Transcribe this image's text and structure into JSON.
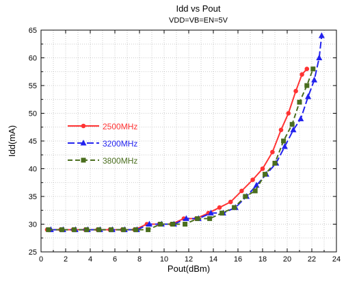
{
  "chart_data": {
    "type": "line",
    "title": "Idd vs Pout",
    "subtitle": "VDD=VB=EN=5V",
    "xlabel": "Pout(dBm)",
    "ylabel": "Idd(mA)",
    "xlim": [
      0,
      24
    ],
    "ylim": [
      25,
      65
    ],
    "xticks": [
      0,
      2,
      4,
      6,
      8,
      10,
      12,
      14,
      16,
      18,
      20,
      22,
      24
    ],
    "yticks": [
      25,
      30,
      35,
      40,
      45,
      50,
      55,
      60,
      65
    ],
    "grid": true,
    "grid_style": "dotted",
    "legend_position": "middle-left",
    "series": [
      {
        "name": "2500MHz",
        "color": "#ff3333",
        "marker": "circle",
        "dash": "solid",
        "x": [
          0.5,
          1.6,
          2.6,
          3.6,
          4.6,
          5.6,
          6.6,
          7.6,
          8.6,
          9.6,
          10.6,
          11.6,
          12.6,
          13.6,
          14.5,
          15.4,
          16.3,
          17.2,
          18.0,
          18.8,
          19.5,
          20.1,
          20.7,
          21.2,
          21.6
        ],
        "y": [
          29,
          29,
          29,
          29,
          29,
          29,
          29,
          29,
          30,
          30,
          30,
          31,
          31,
          32,
          33,
          34,
          36,
          38,
          40,
          43,
          47,
          50,
          54,
          57,
          58
        ]
      },
      {
        "name": "3200MHz",
        "color": "#2222ee",
        "marker": "triangle",
        "dash": "long-dash",
        "x": [
          0.8,
          1.8,
          2.8,
          3.8,
          4.8,
          5.8,
          6.8,
          7.8,
          8.8,
          9.8,
          10.8,
          11.8,
          12.8,
          13.8,
          14.8,
          15.8,
          16.7,
          17.5,
          18.3,
          19.1,
          19.8,
          20.5,
          21.1,
          21.7,
          22.2,
          22.6,
          22.8
        ],
        "y": [
          29,
          29,
          29,
          29,
          29,
          29,
          29,
          29,
          30,
          30,
          30,
          31,
          31,
          32,
          32,
          33,
          35,
          37,
          39,
          41,
          44,
          47,
          49,
          53,
          56,
          60,
          64
        ]
      },
      {
        "name": "3800MHz",
        "color": "#4a6e1e",
        "marker": "square",
        "dash": "dash",
        "x": [
          0.6,
          1.7,
          2.7,
          3.7,
          4.7,
          5.7,
          6.7,
          7.7,
          8.7,
          9.7,
          10.7,
          11.7,
          12.7,
          13.7,
          14.7,
          15.7,
          16.6,
          17.4,
          18.2,
          19.0,
          19.7,
          20.4,
          21.0,
          21.6,
          22.1
        ],
        "y": [
          29,
          29,
          29,
          29,
          29,
          29,
          29,
          29,
          29,
          30,
          30,
          30,
          31,
          31,
          32,
          33,
          35,
          36,
          39,
          41,
          45,
          48,
          52,
          55,
          58
        ]
      }
    ]
  }
}
